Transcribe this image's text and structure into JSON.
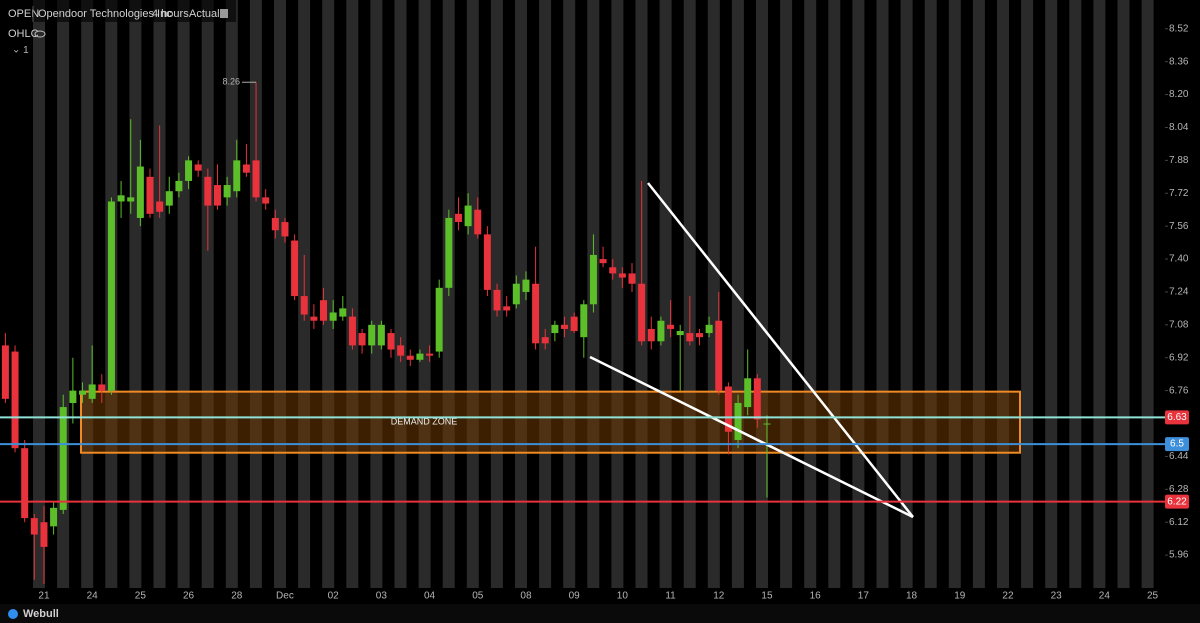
{
  "chart_data": {
    "type": "candlestick",
    "symbol": "OPEN",
    "title": "Opendoor Technologies Inc",
    "interval": "4 hours",
    "mode": "Actual",
    "indicator": "OHLC",
    "indicator_count": "1",
    "brand": "Webull",
    "up_color": "#5cbf2a",
    "down_color": "#e8323c",
    "ylim": [
      5.8,
      8.66
    ],
    "yticks": [
      5.96,
      6.12,
      6.28,
      6.44,
      6.76,
      6.92,
      7.08,
      7.24,
      {
        "value": 7.4,
        "label": "7.40"
      },
      7.56,
      7.72,
      7.88,
      8.04,
      {
        "value": 8.2,
        "label": "8.20"
      },
      8.36,
      8.52
    ],
    "categories": [
      null,
      null,
      null,
      null,
      "21",
      null,
      null,
      null,
      null,
      "24",
      null,
      null,
      null,
      null,
      "25",
      null,
      null,
      null,
      null,
      "26",
      null,
      null,
      null,
      null,
      "28",
      null,
      null,
      null,
      null,
      "Dec",
      null,
      null,
      null,
      null,
      "02",
      null,
      null,
      null,
      null,
      "03",
      null,
      null,
      null,
      null,
      "04",
      null,
      null,
      null,
      null,
      "05",
      null,
      null,
      null,
      null,
      "08",
      null,
      null,
      null,
      null,
      "09",
      null,
      null,
      null,
      null,
      "10",
      null,
      null,
      null,
      null,
      "11",
      null,
      null,
      null,
      null,
      "12",
      null,
      null,
      null,
      null,
      "15",
      null,
      null,
      null,
      null,
      "16",
      null,
      null,
      null,
      null,
      "17",
      null,
      null,
      null,
      null,
      "18",
      null,
      null,
      null,
      null,
      "19",
      null,
      null,
      null,
      null,
      "22",
      null,
      null,
      null,
      null,
      "23",
      null,
      null,
      null,
      null,
      "24",
      null,
      null,
      null,
      null,
      "25"
    ],
    "open": [
      6.98,
      6.95,
      6.48,
      6.14,
      6.12,
      6.1,
      6.18,
      6.7,
      6.74,
      6.72,
      6.79,
      6.76,
      7.68,
      7.68,
      7.6,
      7.8,
      7.68,
      7.66,
      7.73,
      7.78,
      7.86,
      7.8,
      7.76,
      7.7,
      7.73,
      7.86,
      7.88,
      7.7,
      7.6,
      7.58,
      7.49,
      7.22,
      7.12,
      7.2,
      7.1,
      7.12,
      7.12,
      7.04,
      6.98,
      6.98,
      7.04,
      6.98,
      6.93,
      6.91,
      6.94,
      6.95,
      7.26,
      7.62,
      7.56,
      7.64,
      7.52,
      7.25,
      7.17,
      7.18,
      7.24,
      7.28,
      7.02,
      7.04,
      7.08,
      7.12,
      7.02,
      7.18,
      7.4,
      7.36,
      7.33,
      7.33,
      7.28,
      7.06,
      7.0,
      7.08,
      7.03,
      7.04,
      7.04,
      7.04,
      7.1,
      6.78,
      6.52,
      6.68,
      6.82,
      6.6,
      null,
      null,
      null,
      null,
      null,
      null,
      null,
      null,
      null,
      null,
      null,
      null,
      null,
      null,
      null,
      null,
      null,
      null,
      null,
      null,
      null,
      null,
      null,
      null,
      null,
      null,
      null,
      null,
      null,
      null,
      null,
      null,
      null,
      null,
      null,
      null,
      null,
      null,
      null,
      null
    ],
    "high": [
      7.04,
      6.98,
      6.52,
      6.16,
      6.2,
      6.22,
      6.74,
      6.92,
      6.8,
      6.98,
      6.84,
      7.7,
      7.78,
      8.08,
      7.98,
      7.84,
      8.05,
      7.8,
      7.82,
      7.9,
      7.88,
      7.84,
      7.86,
      7.8,
      7.98,
      7.96,
      8.26,
      7.74,
      7.64,
      7.6,
      7.52,
      7.42,
      7.18,
      7.26,
      7.2,
      7.22,
      7.16,
      7.06,
      7.1,
      7.1,
      7.06,
      7.02,
      6.96,
      6.96,
      6.98,
      7.3,
      7.64,
      7.7,
      7.72,
      7.7,
      7.56,
      7.28,
      7.22,
      7.32,
      7.34,
      7.46,
      7.06,
      7.1,
      7.12,
      7.14,
      7.2,
      7.52,
      7.46,
      7.4,
      7.36,
      7.38,
      7.78,
      7.12,
      7.12,
      7.2,
      7.08,
      7.22,
      7.06,
      7.12,
      7.24,
      6.8,
      6.74,
      6.96,
      6.84,
      6.64,
      null,
      null,
      null,
      null,
      null,
      null,
      null,
      null,
      null,
      null,
      null,
      null,
      null,
      null,
      null,
      null,
      null,
      null,
      null,
      null,
      null,
      null,
      null,
      null,
      null,
      null,
      null,
      null,
      null,
      null,
      null,
      null,
      null,
      null,
      null,
      null,
      null,
      null,
      null,
      null
    ],
    "low": [
      6.7,
      6.46,
      6.12,
      5.84,
      5.82,
      6.06,
      6.16,
      6.6,
      6.7,
      6.7,
      6.7,
      6.74,
      7.6,
      7.62,
      7.56,
      7.6,
      7.6,
      7.62,
      7.7,
      7.74,
      7.8,
      7.44,
      7.64,
      7.66,
      7.7,
      7.8,
      7.68,
      7.64,
      7.5,
      7.48,
      7.2,
      7.1,
      7.06,
      7.08,
      7.06,
      7.1,
      6.96,
      6.94,
      6.94,
      6.96,
      6.92,
      6.9,
      6.88,
      6.9,
      6.9,
      6.92,
      7.22,
      7.54,
      7.52,
      7.5,
      7.22,
      7.12,
      7.12,
      7.16,
      7.2,
      6.96,
      6.96,
      7.0,
      7.02,
      7.04,
      6.92,
      7.14,
      7.36,
      7.3,
      7.26,
      7.24,
      6.98,
      6.96,
      6.98,
      7.02,
      6.76,
      6.98,
      6.98,
      7.02,
      6.74,
      6.45,
      6.48,
      6.64,
      6.58,
      6.24,
      null,
      null,
      null,
      null,
      null,
      null,
      null,
      null,
      null,
      null,
      null,
      null,
      null,
      null,
      null,
      null,
      null,
      null,
      null,
      null,
      null,
      null,
      null,
      null,
      null,
      null,
      null,
      null,
      null,
      null,
      null,
      null,
      null,
      null,
      null,
      null,
      null,
      null,
      null,
      null
    ],
    "close": [
      6.72,
      6.48,
      6.14,
      6.06,
      6.0,
      6.19,
      6.68,
      6.76,
      6.76,
      6.79,
      6.76,
      7.68,
      7.71,
      7.7,
      7.85,
      7.62,
      7.63,
      7.73,
      7.78,
      7.88,
      7.83,
      7.66,
      7.66,
      7.76,
      7.88,
      7.82,
      7.7,
      7.67,
      7.54,
      7.51,
      7.22,
      7.13,
      7.1,
      7.1,
      7.14,
      7.16,
      6.98,
      6.98,
      7.08,
      7.08,
      6.96,
      6.93,
      6.91,
      6.94,
      6.93,
      7.26,
      7.6,
      7.58,
      7.66,
      7.52,
      7.25,
      7.15,
      7.15,
      7.28,
      7.3,
      6.99,
      6.99,
      7.08,
      7.06,
      7.05,
      7.18,
      7.42,
      7.38,
      7.33,
      7.31,
      7.28,
      7.0,
      7.0,
      7.1,
      7.06,
      7.05,
      7.0,
      7.02,
      7.08,
      6.76,
      6.56,
      6.7,
      6.82,
      6.62,
      6.6,
      null,
      null,
      null,
      null,
      null,
      null,
      null,
      null,
      null,
      null,
      null,
      null,
      null,
      null,
      null,
      null,
      null,
      null,
      null,
      null,
      null,
      null,
      null,
      null,
      null,
      null,
      null,
      null,
      null,
      null,
      null,
      null,
      null,
      null,
      null,
      null,
      null,
      null,
      null,
      null
    ],
    "high_label": 8.26,
    "demand_zone": {
      "label": "DEMAND ZONE",
      "top": 6.755,
      "bottom": 6.458,
      "color": "#f08a24"
    },
    "levels": [
      {
        "value": 6.63,
        "color": "#8fe3d8",
        "tag_color": "#e8323c"
      },
      {
        "value": 6.5,
        "color": "#3d8fd9",
        "tag_color": "#3d8fd9"
      },
      {
        "value": 6.22,
        "color": "#e8323c",
        "tag_color": "#e8323c"
      }
    ]
  }
}
